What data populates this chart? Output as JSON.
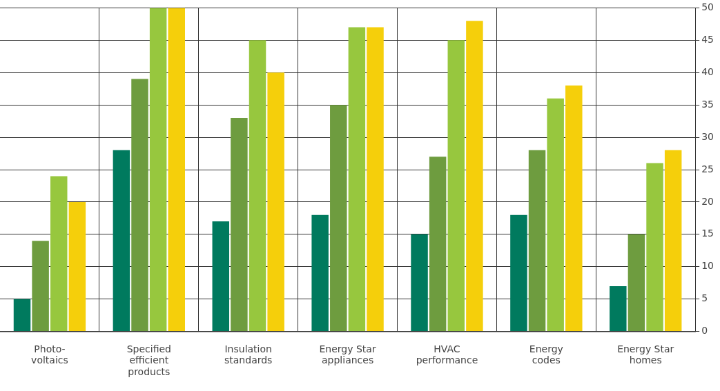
{
  "chart_data": {
    "type": "bar",
    "categories": [
      "Photo-\nvoltaics",
      "Specified\nefficient\nproducts",
      "Insulation\nstandards",
      "Energy Star\nappliances",
      "HVAC\nperformance",
      "Energy\ncodes",
      "Energy Star\nhomes"
    ],
    "series": [
      {
        "color": "#007a5e",
        "values": [
          5,
          28,
          17,
          18,
          15,
          18,
          7
        ]
      },
      {
        "color": "#6e9c3f",
        "values": [
          14,
          39,
          33,
          35,
          27,
          28,
          15
        ]
      },
      {
        "color": "#97c73e",
        "values": [
          24,
          50,
          45,
          47,
          45,
          36,
          26
        ]
      },
      {
        "color": "#f5cf0b",
        "values": [
          20,
          50,
          40,
          47,
          48,
          38,
          28
        ]
      }
    ],
    "ylim": [
      0,
      50
    ],
    "yticks": [
      0,
      5,
      10,
      15,
      20,
      25,
      30,
      35,
      40,
      45,
      50
    ],
    "grid": true,
    "legend": false
  }
}
